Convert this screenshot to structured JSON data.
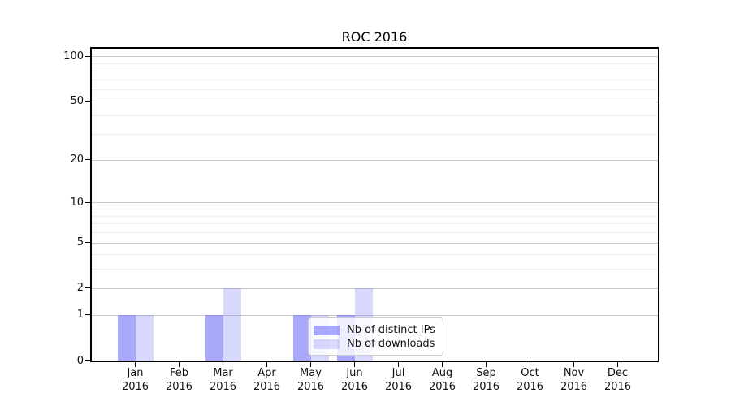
{
  "chart_data": {
    "type": "bar",
    "title": "ROC 2016",
    "categories": [
      "Jan",
      "Feb",
      "Mar",
      "Apr",
      "May",
      "Jun",
      "Jul",
      "Aug",
      "Sep",
      "Oct",
      "Nov",
      "Dec"
    ],
    "category_year": "2016",
    "series": [
      {
        "name": "Nb of distinct IPs",
        "color": "rgba(90,90,250,0.52)",
        "values": [
          1,
          0,
          1,
          0,
          1,
          1,
          0,
          0,
          0,
          0,
          0,
          0
        ]
      },
      {
        "name": "Nb of downloads",
        "color": "rgba(90,90,250,0.23)",
        "values": [
          1,
          0,
          2,
          0,
          1,
          2,
          0,
          0,
          0,
          0,
          0,
          0
        ]
      }
    ],
    "yscale": "log1p",
    "ylim": [
      0,
      115
    ],
    "yticks": [
      0,
      1,
      2,
      5,
      10,
      20,
      50,
      100
    ],
    "minor_yticks": [
      3,
      4,
      6,
      7,
      8,
      9,
      30,
      40,
      60,
      70,
      80,
      90
    ],
    "grid": true,
    "legend_position": "lower-center-over-plot",
    "colors": {
      "major_grid": "#c9c9c9",
      "minor_grid": "#ededed",
      "spine": "#000000",
      "legend_border": "#cccccc"
    }
  }
}
